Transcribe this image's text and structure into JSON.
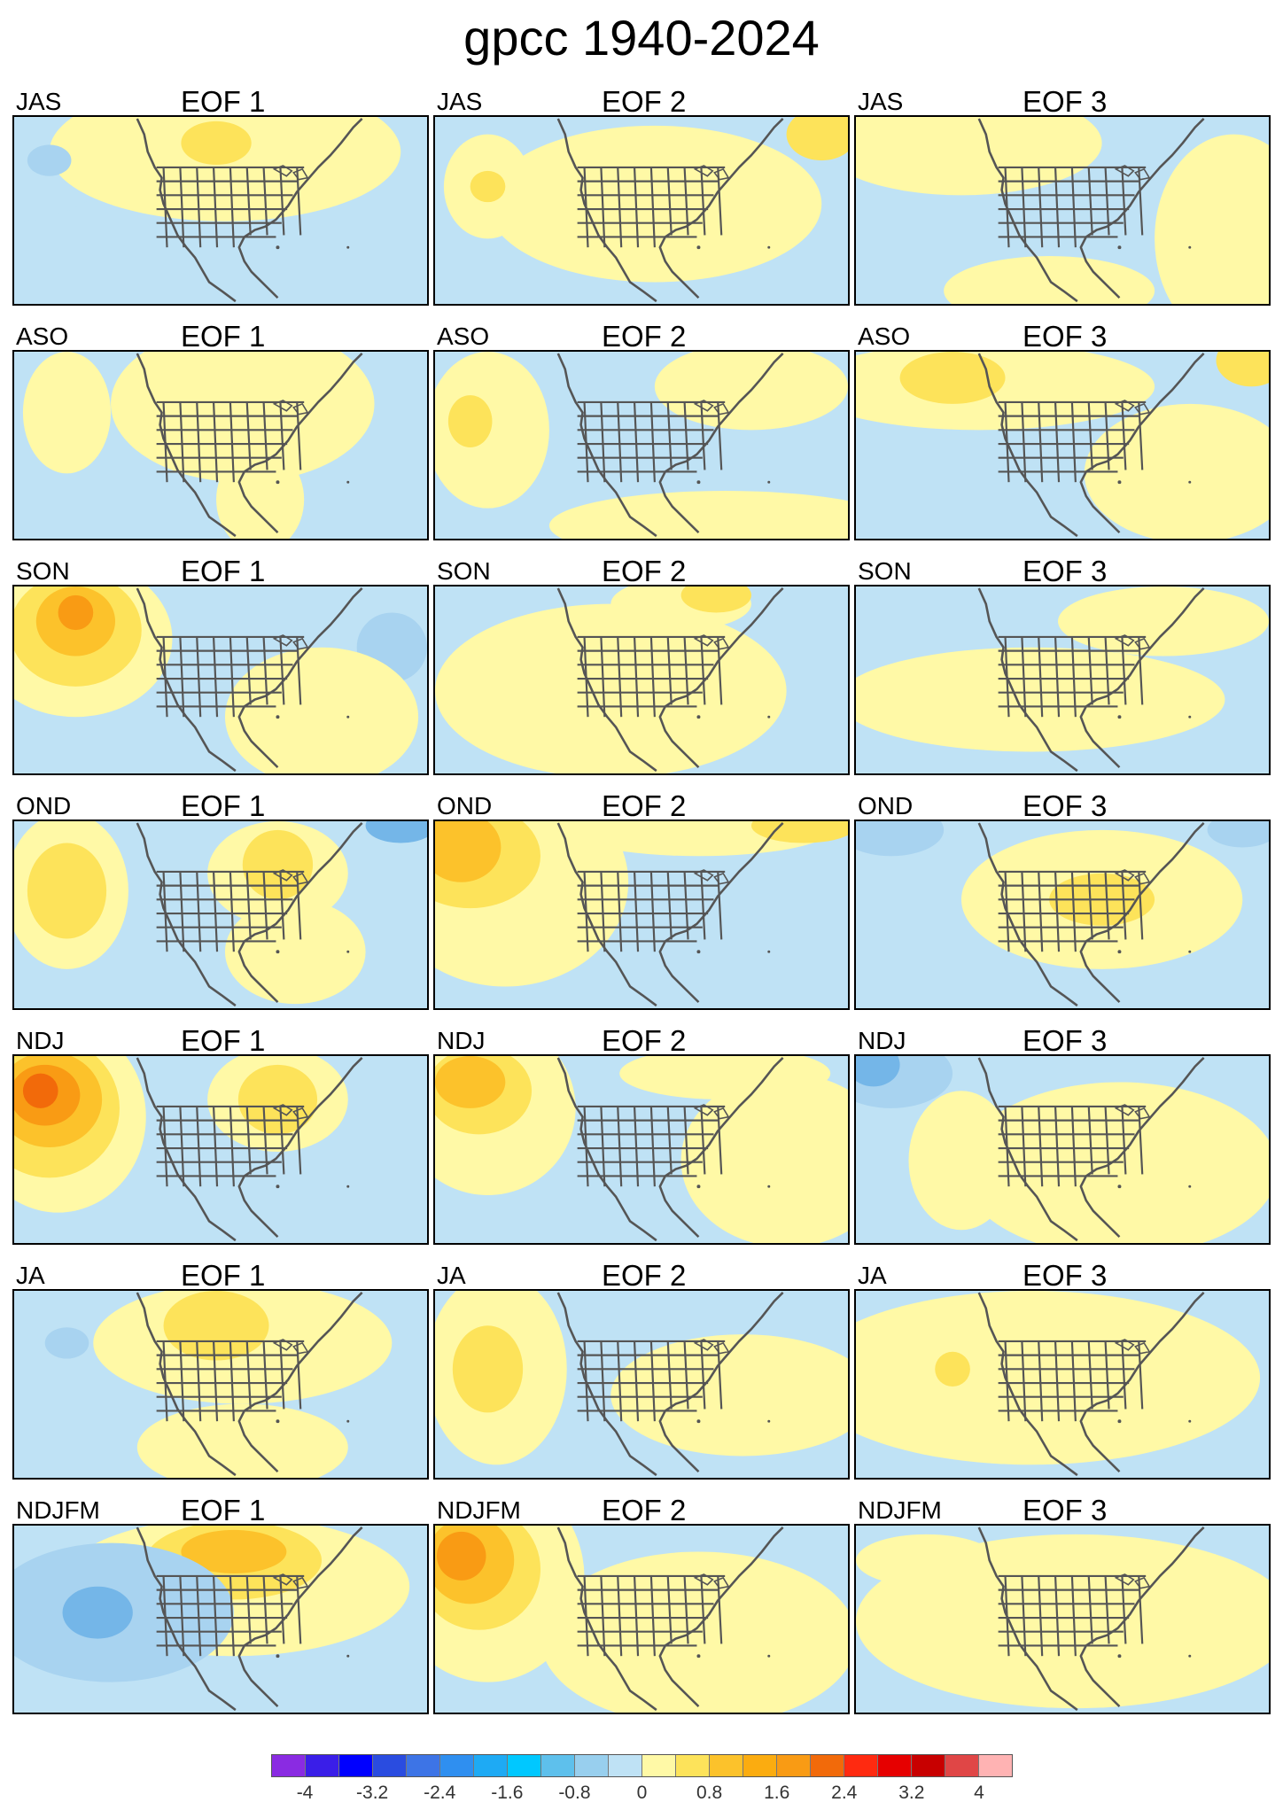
{
  "title": "gpcc 1940-2024",
  "colors": {
    "neg_strong": "#3d8fd8",
    "neg_mid": "#74b6e8",
    "neg_weak": "#a8d3f0",
    "neutral_neg": "#bfe2f5",
    "neutral_pos": "#fff9a6",
    "pos_weak": "#fde35a",
    "pos_mid": "#fcc22b",
    "pos_strong": "#f99b14",
    "pos_very": "#f26a0a",
    "coast": "#555555"
  },
  "rows": [
    {
      "season": "JAS"
    },
    {
      "season": "ASO"
    },
    {
      "season": "SON"
    },
    {
      "season": "OND"
    },
    {
      "season": "NDJ"
    },
    {
      "season": "JA"
    },
    {
      "season": "NDJFM"
    }
  ],
  "eof_labels": [
    "EOF 1",
    "EOF 2",
    "EOF 3"
  ],
  "colorbar": {
    "colors": [
      "#8a2be2",
      "#3a1ee8",
      "#0000ff",
      "#2a4ce0",
      "#3d74e6",
      "#2f8ff0",
      "#1eaaf4",
      "#00c8ff",
      "#5ec0ec",
      "#98cfee",
      "#bfe2f5",
      "#fff9a6",
      "#fde35a",
      "#fcc22b",
      "#fbac10",
      "#f99b14",
      "#f26a0a",
      "#ff2a10",
      "#e60000",
      "#c80000",
      "#e04646",
      "#ffb3b3"
    ],
    "ticks": [
      "-4",
      "-3.2",
      "-2.4",
      "-1.6",
      "-0.8",
      "0",
      "0.8",
      "1.6",
      "2.4",
      "3.2",
      "4"
    ]
  }
}
